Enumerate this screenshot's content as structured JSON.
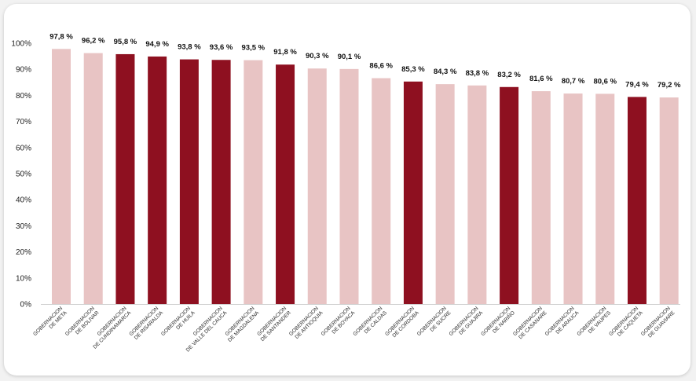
{
  "chart_data": {
    "type": "bar",
    "categories": [
      [
        "GOBERNACION",
        "DE META"
      ],
      [
        "GOBERNACION",
        "DE BOLIVAR"
      ],
      [
        "GOBERNACION",
        "DE CUNDINAMARCA"
      ],
      [
        "GOBERNACION",
        "DE RISARALDA"
      ],
      [
        "GOBERNACION",
        "DE HUILA"
      ],
      [
        "GOBERNACION",
        "DE VALLE DEL CAUCA"
      ],
      [
        "GOBERNACION",
        "DE MAGDALENA"
      ],
      [
        "GOBERNACION",
        "DE SANTANDER"
      ],
      [
        "GOBERNACION",
        "DE ANTIOQUIA"
      ],
      [
        "GOBERNACION",
        "DE BOYACA"
      ],
      [
        "GOBERNACION",
        "DE CALDAS"
      ],
      [
        "GOBERNACION",
        "DE CORDOBA"
      ],
      [
        "GOBERNACION",
        "DE SUCRE"
      ],
      [
        "GOBERNACION",
        "DE GUAJIRA"
      ],
      [
        "GOBERNACION",
        "DE NARIÑO"
      ],
      [
        "GOBERNACION",
        "DE CASANARE"
      ],
      [
        "GOBERNACION",
        "DE ARAUCA"
      ],
      [
        "GOBERNACION",
        "DE VAUPES"
      ],
      [
        "GOBERNACION",
        "DE CAQUETA"
      ],
      [
        "GOBERNACION",
        "DE GUAVIARE"
      ]
    ],
    "values": [
      97.8,
      96.2,
      95.8,
      94.9,
      93.8,
      93.6,
      93.5,
      91.8,
      90.3,
      90.1,
      86.6,
      85.3,
      84.3,
      83.8,
      83.2,
      81.6,
      80.7,
      80.6,
      79.4,
      79.2
    ],
    "value_labels": [
      "97,8 %",
      "96,2 %",
      "95,8 %",
      "94,9 %",
      "93,8 %",
      "93,6 %",
      "93,5 %",
      "91,8 %",
      "90,3 %",
      "90,1 %",
      "86,6 %",
      "85,3 %",
      "84,3 %",
      "83,8 %",
      "83,2 %",
      "81,6 %",
      "80,7 %",
      "80,6 %",
      "79,4 %",
      "79,2 %"
    ],
    "highlight": [
      false,
      false,
      true,
      true,
      true,
      true,
      false,
      true,
      false,
      false,
      false,
      true,
      false,
      false,
      true,
      false,
      false,
      false,
      true,
      false
    ],
    "yticks": [
      "0%",
      "10%",
      "20%",
      "30%",
      "40%",
      "50%",
      "60%",
      "70%",
      "80%",
      "90%",
      "100%"
    ],
    "ylim": [
      0,
      100
    ],
    "colors": {
      "highlight": "#8e1020",
      "normal": "#e8c4c4",
      "axis": "#cfcfcf"
    }
  }
}
